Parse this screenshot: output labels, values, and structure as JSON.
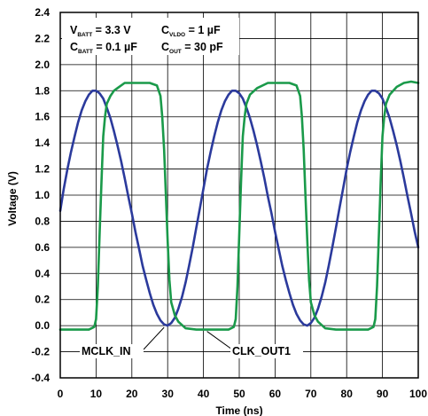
{
  "chart_data": {
    "type": "line",
    "xlabel": "Time (ns)",
    "ylabel": "Voltage (V)",
    "xlim": [
      0,
      100
    ],
    "ylim": [
      -0.4,
      2.4
    ],
    "x_ticks": [
      "0",
      "10",
      "20",
      "30",
      "40",
      "50",
      "60",
      "70",
      "80",
      "90",
      "100"
    ],
    "y_ticks": [
      "2.4",
      "2.2",
      "2.0",
      "1.8",
      "1.6",
      "1.4",
      "1.2",
      "1.0",
      "0.8",
      "0.6",
      "0.4",
      "0.2",
      "0.0",
      "-0.2",
      "-0.4"
    ],
    "grid": true,
    "conditions": {
      "vbatt": {
        "main": "V",
        "sub": "BATT",
        "value": " = 3.3 V"
      },
      "cvldo": {
        "main": "C",
        "sub": "VLDO",
        "value": " = 1 µF"
      },
      "cbatt": {
        "main": "C",
        "sub": "BATT",
        "value": " = 0.1 µF"
      },
      "cout": {
        "main": "C",
        "sub": "OUT",
        "value": " = 30 pF"
      }
    },
    "series": [
      {
        "name": "MCLK_IN",
        "color": "#2b3a9c",
        "x": [
          0,
          1,
          2,
          3,
          4,
          5,
          6,
          7,
          8,
          9,
          10,
          11,
          12,
          13,
          14,
          15,
          16,
          17,
          18,
          19,
          20,
          21,
          22,
          23,
          24,
          25,
          26,
          27,
          28,
          29,
          30,
          31,
          32,
          33,
          34,
          35,
          36,
          37,
          38,
          39,
          40,
          41,
          42,
          43,
          44,
          45,
          46,
          47,
          48,
          49,
          50,
          51,
          52,
          53,
          54,
          55,
          56,
          57,
          58,
          59,
          60,
          61,
          62,
          63,
          64,
          65,
          66,
          67,
          68,
          69,
          70,
          71,
          72,
          73,
          74,
          75,
          76,
          77,
          78,
          79,
          80,
          81,
          82,
          83,
          84,
          85,
          86,
          87,
          88,
          89,
          90,
          91,
          92,
          93,
          94,
          95,
          96,
          97,
          98,
          99,
          100
        ],
        "y": [
          0.88,
          1.05,
          1.2,
          1.33,
          1.45,
          1.56,
          1.65,
          1.72,
          1.77,
          1.8,
          1.8,
          1.78,
          1.74,
          1.67,
          1.59,
          1.49,
          1.38,
          1.26,
          1.13,
          0.99,
          0.86,
          0.72,
          0.59,
          0.46,
          0.35,
          0.25,
          0.16,
          0.09,
          0.04,
          0.01,
          0.0,
          0.02,
          0.06,
          0.13,
          0.22,
          0.33,
          0.46,
          0.6,
          0.75,
          0.9,
          1.05,
          1.2,
          1.33,
          1.45,
          1.56,
          1.65,
          1.72,
          1.77,
          1.8,
          1.8,
          1.78,
          1.74,
          1.67,
          1.59,
          1.49,
          1.38,
          1.26,
          1.13,
          0.99,
          0.86,
          0.72,
          0.59,
          0.46,
          0.35,
          0.25,
          0.16,
          0.09,
          0.04,
          0.01,
          0.0,
          0.02,
          0.06,
          0.13,
          0.22,
          0.33,
          0.46,
          0.6,
          0.75,
          0.9,
          1.05,
          1.2,
          1.33,
          1.45,
          1.56,
          1.65,
          1.72,
          1.77,
          1.8,
          1.8,
          1.78,
          1.74,
          1.67,
          1.59,
          1.49,
          1.38,
          1.26,
          1.13,
          0.99,
          0.86,
          0.72,
          0.6
        ]
      },
      {
        "name": "CLK_OUT1",
        "color": "#1a9a4a",
        "x": [
          0,
          4,
          8,
          9.5,
          10,
          10.5,
          11,
          11.5,
          12,
          12.5,
          13,
          14,
          15,
          16,
          18,
          20,
          22,
          25,
          27,
          28,
          28.5,
          29,
          29.5,
          30,
          30.5,
          31,
          32,
          33,
          35,
          38,
          41,
          44,
          47,
          48.5,
          49,
          49.5,
          50,
          50.5,
          51,
          51.5,
          52,
          53,
          55,
          58,
          61,
          64,
          66,
          67,
          67.5,
          68,
          68.5,
          69,
          69.5,
          70,
          71,
          72,
          74,
          77,
          80,
          83,
          86,
          87.5,
          88,
          88.5,
          89,
          89.5,
          90,
          90.5,
          91,
          92,
          94,
          96,
          98,
          100
        ],
        "y": [
          -0.03,
          -0.03,
          -0.03,
          -0.01,
          0.05,
          0.3,
          0.7,
          1.1,
          1.45,
          1.6,
          1.7,
          1.76,
          1.8,
          1.82,
          1.86,
          1.86,
          1.86,
          1.86,
          1.84,
          1.76,
          1.6,
          1.35,
          1.0,
          0.65,
          0.35,
          0.18,
          0.08,
          0.03,
          -0.02,
          -0.03,
          -0.03,
          -0.03,
          -0.03,
          -0.01,
          0.05,
          0.3,
          0.7,
          1.1,
          1.45,
          1.6,
          1.7,
          1.77,
          1.82,
          1.86,
          1.86,
          1.86,
          1.84,
          1.76,
          1.6,
          1.35,
          1.0,
          0.65,
          0.35,
          0.18,
          0.08,
          0.03,
          -0.02,
          -0.03,
          -0.03,
          -0.03,
          -0.03,
          -0.01,
          0.05,
          0.3,
          0.7,
          1.1,
          1.45,
          1.6,
          1.7,
          1.77,
          1.83,
          1.86,
          1.87,
          1.86
        ]
      }
    ],
    "annotations": [
      {
        "text": "MCLK_IN",
        "target_x": 29,
        "target_y": 0.0
      },
      {
        "text": "CLK_OUT1",
        "target_x": 40,
        "target_y": -0.03
      }
    ]
  }
}
